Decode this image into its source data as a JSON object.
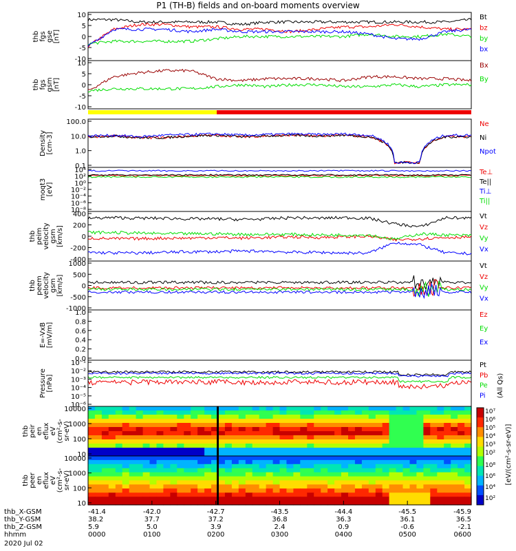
{
  "title": "P1  (TH-B) fields and on-board moments overview",
  "colors": {
    "black": "#000000",
    "red": "#ee0000",
    "green": "#00dd00",
    "blue": "#0000ff",
    "darkred": "#990000",
    "yellow": "#ffff00"
  },
  "chart_data": [
    {
      "type": "line",
      "panel": 1,
      "ylabel": [
        "thb",
        "fgs",
        "gse",
        "[nT]"
      ],
      "ylim": [
        -10,
        10
      ],
      "yticks": [
        "10",
        "5",
        "0",
        "-5",
        "-10"
      ],
      "series": [
        {
          "name": "Bt",
          "color": "black",
          "values": [
            7,
            7,
            6,
            6,
            6,
            6,
            5,
            6,
            6,
            6,
            6,
            6,
            6,
            6,
            6,
            7
          ]
        },
        {
          "name": "bz",
          "color": "red",
          "values": [
            -4,
            3,
            5,
            5,
            4,
            4,
            3,
            3,
            2,
            3,
            4,
            4,
            5,
            4,
            3,
            3
          ]
        },
        {
          "name": "by",
          "color": "green",
          "values": [
            -3,
            -2,
            -2,
            -2,
            -2,
            -1,
            0,
            0,
            0,
            0,
            0,
            1,
            0,
            0,
            1,
            0
          ]
        },
        {
          "name": "bx",
          "color": "blue",
          "values": [
            -4,
            3,
            3,
            3,
            2,
            3,
            2,
            2,
            2,
            2,
            2,
            1,
            -1,
            -1,
            2,
            3
          ]
        }
      ]
    },
    {
      "type": "line",
      "panel": 2,
      "ylabel": [
        "thb",
        "fgs",
        "gsm",
        "[nT]"
      ],
      "ylim": [
        -12,
        12
      ],
      "yticks": [
        "10",
        "5",
        "0",
        "-5",
        "-10"
      ],
      "series": [
        {
          "name": "Bx",
          "color": "darkred",
          "values": [
            -3,
            4,
            6,
            7,
            7,
            3,
            2,
            3,
            3,
            3,
            2,
            4,
            4,
            3,
            3,
            2
          ]
        },
        {
          "name": "By",
          "color": "green",
          "values": [
            -3,
            -2,
            -2,
            -2,
            -2,
            -1,
            0,
            -1,
            0,
            0,
            -1,
            -1,
            0,
            -1,
            0,
            0
          ]
        }
      ]
    },
    {
      "type": "line",
      "panel": 3,
      "ylabel": [
        "Density",
        "[cm-3]"
      ],
      "scale": "log",
      "ylim": [
        0.1,
        100
      ],
      "yticks": [
        "100.0",
        "10.0",
        "1.0",
        "0.1"
      ],
      "series": [
        {
          "name": "Ne",
          "color": "red",
          "values": [
            8,
            9,
            7,
            7,
            9,
            10,
            8,
            9,
            10,
            9,
            10,
            8,
            0.2,
            0.2,
            8,
            8
          ]
        },
        {
          "name": "Ni",
          "color": "black",
          "values": [
            8,
            9,
            7,
            7,
            9,
            10,
            8,
            9,
            10,
            9,
            10,
            8,
            0.2,
            0.2,
            8,
            8
          ]
        },
        {
          "name": "Npot",
          "color": "blue",
          "values": [
            9,
            10,
            8,
            10,
            11,
            12,
            10,
            11,
            12,
            11,
            12,
            10,
            0.2,
            0.2,
            10,
            10
          ]
        }
      ]
    },
    {
      "type": "line",
      "panel": 4,
      "ylabel": [
        "moqt3",
        "[eV]"
      ],
      "scale": "log",
      "yticks": [
        "10⁴",
        "10²",
        "10⁰",
        "10⁻²",
        "10⁻⁴",
        "10⁻⁶",
        "10⁻⁸"
      ],
      "series": [
        {
          "name": "Te⊥",
          "color": "red"
        },
        {
          "name": "Te||",
          "color": "black"
        },
        {
          "name": "Ti⊥",
          "color": "blue"
        },
        {
          "name": "Ti||",
          "color": "green"
        }
      ]
    },
    {
      "type": "line",
      "panel": 5,
      "ylabel": [
        "thb",
        "peim",
        "velocity",
        "gsm",
        "[km/s]"
      ],
      "ylim": [
        -400,
        400
      ],
      "yticks": [
        "400",
        "200",
        "0",
        "-200",
        "-400"
      ],
      "series": [
        {
          "name": "Vt",
          "color": "black",
          "values": [
            290,
            300,
            290,
            290,
            280,
            280,
            270,
            280,
            300,
            290,
            300,
            290,
            200,
            150,
            300,
            290
          ]
        },
        {
          "name": "Vz",
          "color": "red",
          "values": [
            -30,
            -40,
            -40,
            -30,
            -30,
            -20,
            -30,
            -20,
            -10,
            -20,
            -10,
            0,
            -60,
            -40,
            -20,
            -10
          ]
        },
        {
          "name": "Vy",
          "color": "green",
          "values": [
            60,
            60,
            50,
            40,
            40,
            40,
            30,
            30,
            30,
            20,
            20,
            20,
            -50,
            40,
            20,
            10
          ]
        },
        {
          "name": "Vx",
          "color": "blue",
          "values": [
            -260,
            -270,
            -270,
            -260,
            -250,
            -250,
            -240,
            -240,
            -260,
            -260,
            -270,
            -270,
            -100,
            -140,
            -270,
            -280
          ]
        }
      ]
    },
    {
      "type": "line",
      "panel": 6,
      "ylabel": [
        "thb",
        "peem",
        "velocity",
        "gsm",
        "[km/s]"
      ],
      "ylim": [
        -1500,
        1500
      ],
      "yticks": [
        "1000",
        "500",
        "0",
        "-500",
        "-1000"
      ],
      "series": [
        {
          "name": "Vt",
          "color": "black"
        },
        {
          "name": "Vz",
          "color": "red"
        },
        {
          "name": "Vy",
          "color": "green"
        },
        {
          "name": "Vx",
          "color": "blue"
        }
      ]
    },
    {
      "type": "line",
      "panel": 7,
      "ylabel": [
        "E=-VxB",
        "[mV/m]"
      ],
      "ylim": [
        0,
        1
      ],
      "yticks": [
        "1.0",
        "0.8",
        "0.6",
        "0.4",
        "0.2",
        "0.0"
      ],
      "series": [
        {
          "name": "Ez",
          "color": "red"
        },
        {
          "name": "Ey",
          "color": "green"
        },
        {
          "name": "Ex",
          "color": "blue"
        }
      ]
    },
    {
      "type": "line",
      "panel": 8,
      "ylabel": [
        "Pressure",
        "[nPa]"
      ],
      "scale": "log",
      "yticks": [
        "10⁻¹",
        "10⁻²",
        "10⁻³",
        "10⁻⁴",
        "10⁻⁵",
        "10⁻⁶"
      ],
      "series": [
        {
          "name": "Pt",
          "color": "black"
        },
        {
          "name": "Pb",
          "color": "red"
        },
        {
          "name": "Pe",
          "color": "green"
        },
        {
          "name": "Pi",
          "color": "blue"
        }
      ]
    },
    {
      "type": "heatmap",
      "panel": 9,
      "ylabel": [
        "thb",
        "peir",
        "en",
        "eflux",
        "eV",
        "(cm²-s-",
        "sr-eV)"
      ],
      "yticks": [
        "10000",
        "1000",
        "100",
        "10"
      ]
    },
    {
      "type": "heatmap",
      "panel": 10,
      "ylabel": [
        "thb",
        "peer",
        "en",
        "eflux",
        "eV",
        "(cm²-s-",
        "sr-eV)"
      ],
      "yticks": [
        "10000",
        "1000",
        "100",
        "10"
      ]
    }
  ],
  "colorbar": {
    "label": "[eV/(cm²-s-sr-eV)]",
    "sublabel": "(All Qs)",
    "ticks_top": [
      "10⁷",
      "10⁶",
      "10⁵",
      "10⁴",
      "10³",
      "10²"
    ],
    "ticks_bottom": [
      "10⁸",
      "10⁶",
      "10⁴",
      "10²"
    ]
  },
  "xaxis": {
    "rows": [
      {
        "label": "thb_X-GSM",
        "values": [
          "-41.4",
          "-42.0",
          "-42.7",
          "-43.5",
          "-44.4",
          "-45.5",
          "-45.9"
        ]
      },
      {
        "label": "thb_Y-GSM",
        "values": [
          "38.2",
          "37.7",
          "37.2",
          "36.8",
          "36.3",
          "36.1",
          "36.5"
        ]
      },
      {
        "label": "thb_Z-GSM",
        "values": [
          "5.9",
          "5.0",
          "3.9",
          "2.4",
          "0.9",
          "-0.6",
          "-2.1"
        ]
      },
      {
        "label": "hhmm",
        "values": [
          "0000",
          "0100",
          "0200",
          "0300",
          "0400",
          "0500",
          "0600"
        ]
      }
    ],
    "date": "2020 Jul 02"
  }
}
